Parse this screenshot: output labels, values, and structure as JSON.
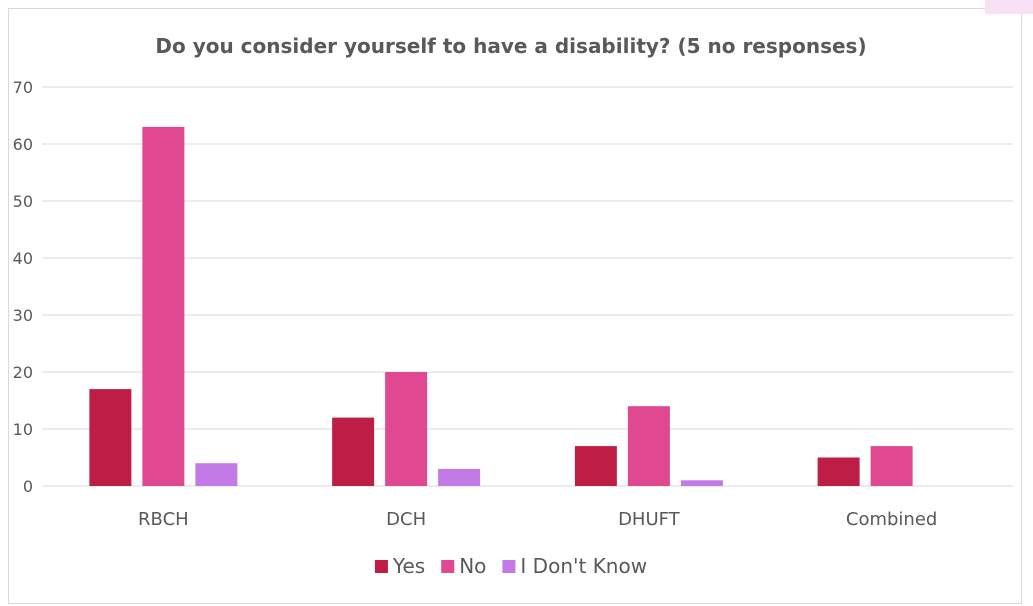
{
  "chart_data": {
    "type": "bar",
    "title": "Do you consider yourself to have a disability? (5 no responses)",
    "xlabel": "",
    "ylabel": "",
    "categories": [
      "RBCH",
      "DCH",
      "DHUFT",
      "Combined"
    ],
    "series": [
      {
        "name": "Yes",
        "color": "#be1e45",
        "values": [
          17,
          12,
          7,
          5
        ]
      },
      {
        "name": "No",
        "color": "#e04891",
        "values": [
          63,
          20,
          14,
          7
        ]
      },
      {
        "name": "I Don't Know",
        "color": "#c27ae6",
        "values": [
          4,
          3,
          1,
          0
        ]
      }
    ],
    "ylim": [
      0,
      70
    ],
    "yticks": [
      0,
      10,
      20,
      30,
      40,
      50,
      60,
      70
    ],
    "grid": true,
    "legend_position": "bottom"
  }
}
